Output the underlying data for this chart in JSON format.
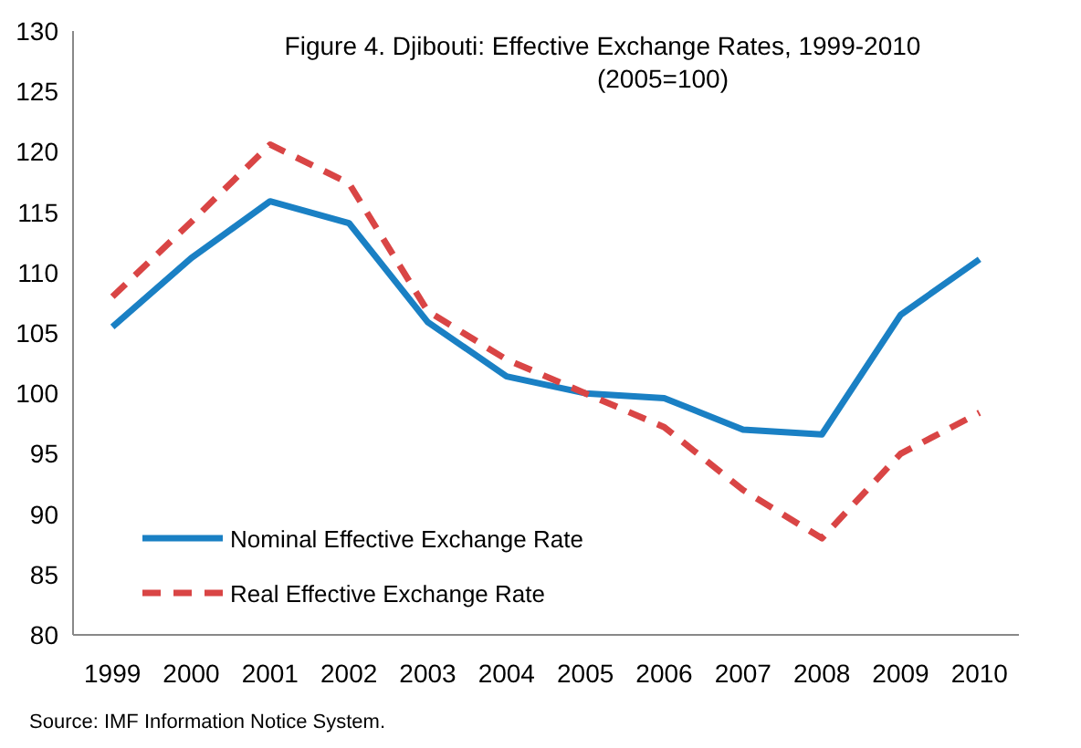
{
  "chart_data": {
    "type": "line",
    "title": "Figure 4. Djibouti:  Effective Exchange Rates, 1999-2010",
    "subtitle": "(2005=100)",
    "categories": [
      "1999",
      "2000",
      "2001",
      "2002",
      "2003",
      "2004",
      "2005",
      "2006",
      "2007",
      "2008",
      "2009",
      "2010"
    ],
    "series": [
      {
        "name": "Nominal Effective Exchange Rate",
        "color": "#1a80c4",
        "line_style": "solid",
        "values": [
          105.5,
          111.2,
          115.9,
          114.1,
          105.9,
          101.4,
          100.0,
          99.6,
          97.0,
          96.6,
          106.5,
          111.1
        ]
      },
      {
        "name": "Real Effective Exchange Rate",
        "color": "#d94545",
        "line_style": "dashed",
        "values": [
          108.0,
          114.2,
          120.6,
          117.4,
          106.8,
          102.8,
          100.0,
          97.2,
          92.0,
          88.0,
          95.0,
          98.4
        ]
      }
    ],
    "ylim": [
      80,
      130
    ],
    "yticks": [
      80,
      85,
      90,
      95,
      100,
      105,
      110,
      115,
      120,
      125,
      130
    ],
    "grid": false,
    "legend": "bottom left",
    "marker": "none",
    "annotations": [
      "Source: IMF Information Notice System."
    ]
  }
}
